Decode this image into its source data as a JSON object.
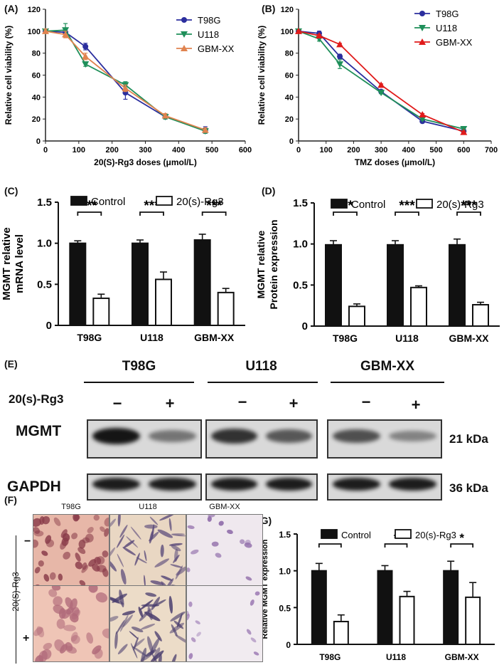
{
  "panels": {
    "A": "(A)",
    "B": "(B)",
    "C": "(C)",
    "D": "(D)",
    "E": "(E)",
    "F": "(F)",
    "G": "(G)"
  },
  "colors": {
    "t98g_line": "#2b2e9e",
    "u118_line": "#1f8f5a",
    "gbm_line_a": "#e0834f",
    "gbm_line_b": "#e01b1b",
    "bar_dark": "#111111",
    "bar_light": "#ffffff",
    "blot_bg": "#d9d9d9",
    "band": "#151515"
  },
  "chart_data": [
    {
      "id": "A",
      "type": "line",
      "xlabel": "20(S)-Rg3 doses (μmol/L)",
      "ylabel": "Relative cell viability (%)",
      "xlim": [
        0,
        600
      ],
      "ylim": [
        0,
        120
      ],
      "xticks": [
        "0",
        "100",
        "200",
        "300",
        "400",
        "500",
        "600"
      ],
      "yticks": [
        "0",
        "20",
        "40",
        "60",
        "80",
        "100",
        "120"
      ],
      "legend_position": "top-right",
      "series": [
        {
          "name": "T98G",
          "marker": "circle",
          "color": "#2b2e9e",
          "x": [
            0,
            60,
            120,
            240,
            360,
            480
          ],
          "y": [
            100,
            99,
            86,
            44,
            22,
            10
          ],
          "err": [
            2,
            4,
            3,
            6,
            2,
            3
          ]
        },
        {
          "name": "U118",
          "marker": "triangle-down",
          "color": "#1f8f5a",
          "x": [
            0,
            60,
            120,
            240,
            360,
            480
          ],
          "y": [
            100,
            101,
            70,
            51,
            22,
            9
          ],
          "err": [
            2,
            6,
            2,
            3,
            2,
            2
          ]
        },
        {
          "name": "GBM-XX",
          "marker": "triangle-up",
          "color": "#e0834f",
          "x": [
            0,
            60,
            120,
            240,
            360,
            480
          ],
          "y": [
            100,
            97,
            77,
            48,
            23,
            10
          ],
          "err": [
            2,
            3,
            3,
            3,
            2,
            2
          ]
        }
      ]
    },
    {
      "id": "B",
      "type": "line",
      "xlabel": "TMZ doses (μmol/L)",
      "ylabel": "Relative cell viability (%)",
      "xlim": [
        0,
        700
      ],
      "ylim": [
        0,
        120
      ],
      "xticks": [
        "0",
        "100",
        "200",
        "300",
        "400",
        "500",
        "600",
        "700"
      ],
      "yticks": [
        "0",
        "20",
        "40",
        "60",
        "80",
        "100",
        "120"
      ],
      "legend_position": "top-right",
      "series": [
        {
          "name": "T98G",
          "marker": "circle",
          "color": "#2b2e9e",
          "x": [
            0,
            75,
            150,
            300,
            450,
            600
          ],
          "y": [
            100,
            98,
            77,
            45,
            18,
            9
          ],
          "err": [
            1,
            2,
            2,
            1,
            1,
            1
          ]
        },
        {
          "name": "U118",
          "marker": "triangle-down",
          "color": "#1f8f5a",
          "x": [
            0,
            75,
            150,
            300,
            450,
            600
          ],
          "y": [
            100,
            93,
            70,
            44,
            20,
            11
          ],
          "err": [
            1,
            2,
            4,
            1,
            1,
            1
          ]
        },
        {
          "name": "GBM-XX",
          "marker": "triangle-up",
          "color": "#e01b1b",
          "x": [
            0,
            75,
            150,
            300,
            450,
            600
          ],
          "y": [
            100,
            96,
            88,
            51,
            24,
            8
          ],
          "err": [
            1,
            1,
            1,
            1,
            1,
            1
          ]
        }
      ]
    },
    {
      "id": "C",
      "type": "bar",
      "ylabel": "MGMT relative mRNA level",
      "categories": [
        "T98G",
        "U118",
        "GBM-XX"
      ],
      "ylim": [
        0,
        1.5
      ],
      "yticks": [
        "0",
        "0.5",
        "1.0",
        "1.5"
      ],
      "legend_position": "top",
      "series": [
        {
          "name": "Control",
          "fill": "dark",
          "values": [
            1.0,
            1.0,
            1.04
          ],
          "err": [
            0.03,
            0.04,
            0.07
          ]
        },
        {
          "name": "20(s)-Rg3",
          "fill": "light",
          "values": [
            0.33,
            0.56,
            0.4
          ],
          "err": [
            0.05,
            0.09,
            0.05
          ]
        }
      ],
      "significance": [
        "***",
        "***",
        "***"
      ]
    },
    {
      "id": "D",
      "type": "bar",
      "ylabel": "MGMT relative Protein expression",
      "categories": [
        "T98G",
        "U118",
        "GBM-XX"
      ],
      "ylim": [
        0,
        1.5
      ],
      "yticks": [
        "0",
        "0.5",
        "1.0",
        "1.5"
      ],
      "legend_position": "top",
      "series": [
        {
          "name": "Control",
          "fill": "dark",
          "values": [
            0.99,
            0.99,
            0.99
          ],
          "err": [
            0.05,
            0.05,
            0.07
          ]
        },
        {
          "name": "20(s)-Rg3",
          "fill": "light",
          "values": [
            0.24,
            0.47,
            0.26
          ],
          "err": [
            0.03,
            0.02,
            0.03
          ]
        }
      ],
      "significance": [
        "***",
        "***",
        "***"
      ]
    },
    {
      "id": "G",
      "type": "bar",
      "ylabel": "Relative MGMT expression",
      "categories": [
        "T98G",
        "U118",
        "GBM-XX"
      ],
      "ylim": [
        0,
        1.5
      ],
      "yticks": [
        "0",
        "0.5",
        "1.0",
        "1.5"
      ],
      "legend_position": "top",
      "series": [
        {
          "name": "Control",
          "fill": "dark",
          "values": [
            1.0,
            1.0,
            1.0
          ],
          "err": [
            0.1,
            0.07,
            0.13
          ]
        },
        {
          "name": "20(s)-Rg3",
          "fill": "light",
          "values": [
            0.31,
            0.65,
            0.64
          ],
          "err": [
            0.09,
            0.07,
            0.2
          ]
        }
      ],
      "significance": [
        "**",
        "*",
        "*"
      ]
    }
  ],
  "blot": {
    "groups": [
      "T98G",
      "U118",
      "GBM-XX"
    ],
    "treatment_label": "20(s)-Rg3",
    "signs": [
      "−",
      "+",
      "−",
      "+",
      "−",
      "+"
    ],
    "rows": [
      {
        "label": "MGMT",
        "size": "21 kDa",
        "intensity": [
          1.0,
          0.35,
          0.8,
          0.55,
          0.6,
          0.25
        ]
      },
      {
        "label": "GAPDH",
        "size": "36 kDa",
        "intensity": [
          0.95,
          0.95,
          0.95,
          0.95,
          0.95,
          0.95
        ]
      }
    ]
  },
  "micro": {
    "columns": [
      "T98G",
      "U118",
      "GBM-XX"
    ],
    "row_axis_label": "20(S)-Rg3",
    "rows": [
      "−",
      "+"
    ]
  }
}
